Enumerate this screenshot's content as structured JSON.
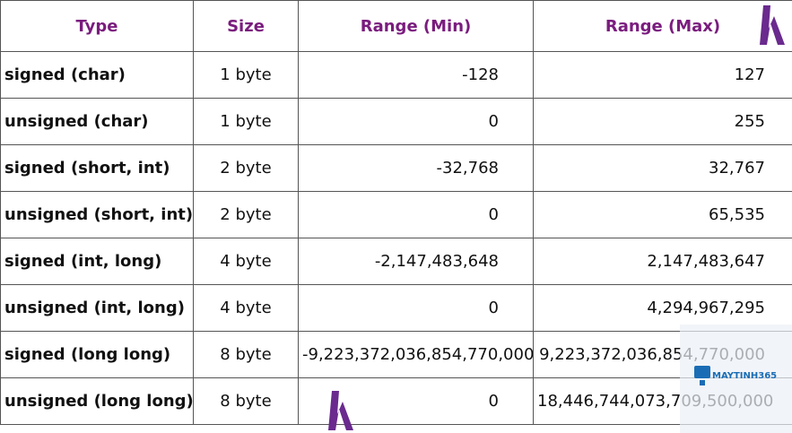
{
  "table": {
    "header": [
      "Type",
      "Size",
      "Range (Min)",
      "Range (Max)"
    ],
    "rows": [
      [
        "signed (char)",
        "1 byte",
        "-128",
        "127"
      ],
      [
        "unsigned (char)",
        "1 byte",
        "0",
        "255"
      ],
      [
        "signed (short, int)",
        "2 byte",
        "-32,768",
        "32,767"
      ],
      [
        "unsigned (short, int)",
        "2 byte",
        "0",
        "65,535"
      ],
      [
        "signed (int, long)",
        "4 byte",
        "-2,147,483,648",
        "2,147,483,647"
      ],
      [
        "unsigned (int, long)",
        "4 byte",
        "0",
        "4,294,967,295"
      ],
      [
        "signed (long long)",
        "8 byte",
        "-9,223,372,036,854,770,000",
        "9,223,372,036,854,770,000"
      ],
      [
        "unsigned (long long)",
        "8 byte",
        "0",
        "18,446,744,073,709,500,000"
      ]
    ]
  },
  "watermark": "MAYTINH365"
}
